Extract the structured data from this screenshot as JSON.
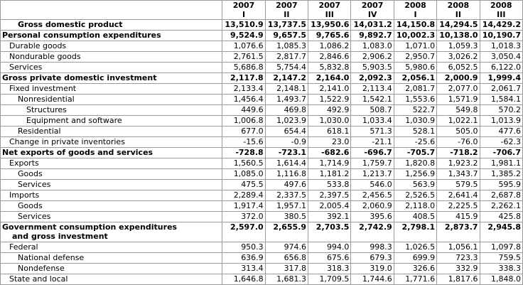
{
  "columns": [
    {
      "year": "2007",
      "quarter": "I"
    },
    {
      "year": "2007",
      "quarter": "II"
    },
    {
      "year": "2007",
      "quarter": "III"
    },
    {
      "year": "2007",
      "quarter": "IV"
    },
    {
      "year": "2008",
      "quarter": "I"
    },
    {
      "year": "2008",
      "quarter": "II"
    },
    {
      "year": "2008",
      "quarter": "III"
    }
  ],
  "rows": [
    {
      "label": "Gross domestic product",
      "values": [
        "13,510.9",
        "13,737.5",
        "13,950.6",
        "14,031.2",
        "14,150.8",
        "14,294.5",
        "14,429.2"
      ]
    },
    {
      "label": "Personal consumption expenditures",
      "values": [
        "9,524.9",
        "9,657.5",
        "9,765.6",
        "9,892.7",
        "10,002.3",
        "10,138.0",
        "10,190.7"
      ]
    },
    {
      "label": "Durable goods",
      "values": [
        "1,076.6",
        "1,085.3",
        "1,086.2",
        "1,083.0",
        "1,071.0",
        "1,059.3",
        "1,018.3"
      ]
    },
    {
      "label": "Nondurable goods",
      "values": [
        "2,761.5",
        "2,817.7",
        "2,846.6",
        "2,906.2",
        "2,950.7",
        "3,026.2",
        "3,050.4"
      ]
    },
    {
      "label": "Services",
      "values": [
        "5,686.8",
        "5,754.4",
        "5,832.8",
        "5,903.5",
        "5,980.6",
        "6,052.5",
        "6,122.0"
      ]
    },
    {
      "label": "Gross private domestic investment",
      "values": [
        "2,117.8",
        "2,147.2",
        "2,164.0",
        "2,092.3",
        "2,056.1",
        "2,000.9",
        "1,999.4"
      ]
    },
    {
      "label": "Fixed investment",
      "values": [
        "2,133.4",
        "2,148.1",
        "2,141.0",
        "2,113.4",
        "2,081.7",
        "2,077.0",
        "2,061.7"
      ]
    },
    {
      "label": "Nonresidential",
      "values": [
        "1,456.4",
        "1,493.7",
        "1,522.9",
        "1,542.1",
        "1,553.6",
        "1,571.9",
        "1,584.1"
      ]
    },
    {
      "label": "Structures",
      "values": [
        "449.6",
        "469.8",
        "492.9",
        "508.7",
        "522.7",
        "549.8",
        "570.2"
      ]
    },
    {
      "label": "Equipment and software",
      "values": [
        "1,006.8",
        "1,023.9",
        "1,030.0",
        "1,033.4",
        "1,030.9",
        "1,022.1",
        "1,013.9"
      ]
    },
    {
      "label": "Residential",
      "values": [
        "677.0",
        "654.4",
        "618.1",
        "571.3",
        "528.1",
        "505.0",
        "477.6"
      ]
    },
    {
      "label": "Change in private inventories",
      "values": [
        "-15.6",
        "-0.9",
        "23.0",
        "-21.1",
        "-25.6",
        "-76.0",
        "-62.3"
      ]
    },
    {
      "label": "Net exports of goods and services",
      "values": [
        "-728.8",
        "-723.1",
        "-682.6",
        "-696.7",
        "-705.7",
        "-718.2",
        "-706.7"
      ]
    },
    {
      "label": "Exports",
      "values": [
        "1,560.5",
        "1,614.4",
        "1,714.9",
        "1,759.7",
        "1,820.8",
        "1,923.2",
        "1,981.1"
      ]
    },
    {
      "label": "Goods",
      "values": [
        "1,085.0",
        "1,116.8",
        "1,181.2",
        "1,213.7",
        "1,256.9",
        "1,343.7",
        "1,385.2"
      ]
    },
    {
      "label": "Services",
      "values": [
        "475.5",
        "497.6",
        "533.8",
        "546.0",
        "563.9",
        "579.5",
        "595.9"
      ]
    },
    {
      "label": "Imports",
      "values": [
        "2,289.4",
        "2,337.5",
        "2,397.5",
        "2,456.5",
        "2,526.5",
        "2,641.4",
        "2,687.8"
      ]
    },
    {
      "label": "Goods",
      "values": [
        "1,917.4",
        "1,957.1",
        "2,005.4",
        "2,060.9",
        "2,118.0",
        "2,225.5",
        "2,262.1"
      ]
    },
    {
      "label": "Services",
      "values": [
        "372.0",
        "380.5",
        "392.1",
        "395.6",
        "408.5",
        "415.9",
        "425.8"
      ]
    },
    {
      "label": "Government consumption expenditures",
      "label2": "and gross investment",
      "values": [
        "2,597.0",
        "2,655.9",
        "2,703.5",
        "2,742.9",
        "2,798.1",
        "2,873.7",
        "2,945.8"
      ]
    },
    {
      "label": "Federal",
      "values": [
        "950.3",
        "974.6",
        "994.0",
        "998.3",
        "1,026.5",
        "1,056.1",
        "1,097.8"
      ]
    },
    {
      "label": "National defense",
      "values": [
        "636.9",
        "656.8",
        "675.6",
        "679.3",
        "699.9",
        "723.3",
        "759.5"
      ]
    },
    {
      "label": "Nondefense",
      "values": [
        "313.4",
        "317.8",
        "318.3",
        "319.0",
        "326.6",
        "332.9",
        "338.3"
      ]
    },
    {
      "label": "State and local",
      "values": [
        "1,646.8",
        "1,681.3",
        "1,709.5",
        "1,744.6",
        "1,771.6",
        "1,817.6",
        "1,848.0"
      ]
    }
  ]
}
